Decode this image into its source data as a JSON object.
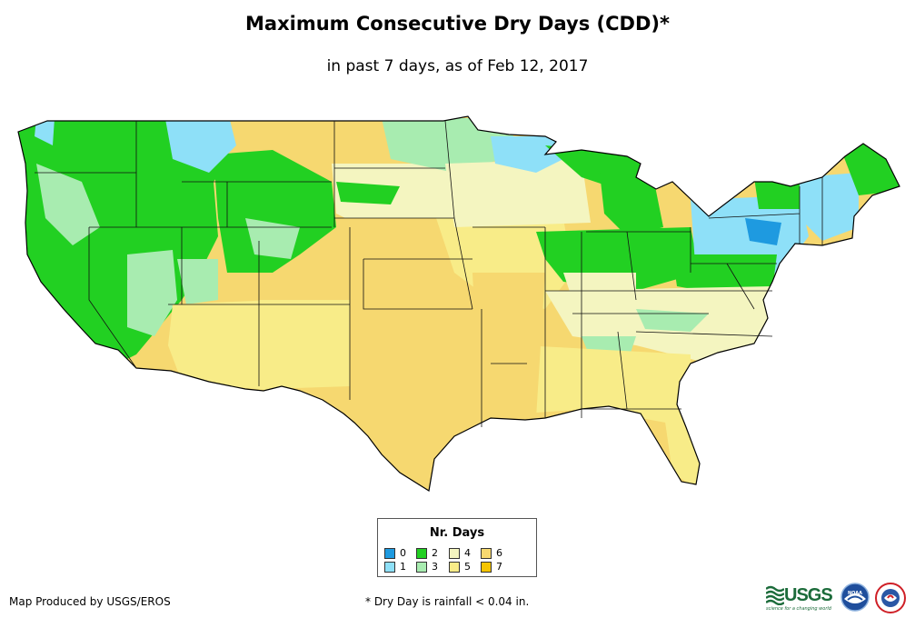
{
  "title": "Maximum Consecutive Dry Days (CDD)*",
  "subtitle": "in past 7 days, as of Feb 12, 2017",
  "legend": {
    "title": "Nr. Days",
    "items": [
      {
        "label": "0",
        "color": "#1e9ae0"
      },
      {
        "label": "1",
        "color": "#8ee0f8"
      },
      {
        "label": "2",
        "color": "#22d022"
      },
      {
        "label": "3",
        "color": "#a8ecb0"
      },
      {
        "label": "4",
        "color": "#f4f5c0"
      },
      {
        "label": "5",
        "color": "#f8ec88"
      },
      {
        "label": "6",
        "color": "#f6d870"
      },
      {
        "label": "7",
        "color": "#f5c400"
      }
    ]
  },
  "credit": "Map Produced by USGS/EROS",
  "footnote": "* Dry Day is rainfall < 0.04 in.",
  "logos": {
    "usgs_word": "USGS",
    "usgs_tagline": "science for a changing world",
    "noaa_word": "NOAA"
  }
}
